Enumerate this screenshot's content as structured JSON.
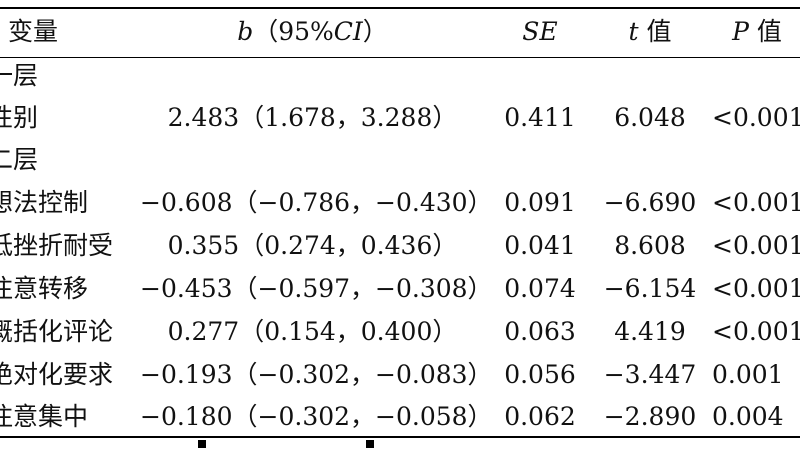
{
  "header": {
    "variable": "变量",
    "b_italic": "b",
    "b_rest": "（95%",
    "ci_italic": "CI",
    "b_close": "）",
    "se": "SE",
    "t_italic": "t",
    "t_rest": " 值",
    "p_italic": "P",
    "p_rest": " 值"
  },
  "rows": [
    {
      "variable": "一层",
      "b": "",
      "se": "",
      "t": "",
      "p": ""
    },
    {
      "variable": "性别",
      "b": "2.483（1.678，3.288）",
      "se": "0.411",
      "t": "6.048",
      "p": "<0.001"
    },
    {
      "variable": "二层",
      "b": "",
      "se": "",
      "t": "",
      "p": ""
    },
    {
      "variable": "想法控制",
      "b": "−0.608（−0.786，−0.430）",
      "se": "0.091",
      "t": "−6.690",
      "p": "<0.001"
    },
    {
      "variable": "低挫折耐受",
      "b": "0.355（0.274，0.436）",
      "se": "0.041",
      "t": "8.608",
      "p": "<0.001"
    },
    {
      "variable": "注意转移",
      "b": "−0.453（−0.597，−0.308）",
      "se": "0.074",
      "t": "−6.154",
      "p": "<0.001"
    },
    {
      "variable": "概括化评论",
      "b": "0.277（0.154，0.400）",
      "se": "0.063",
      "t": "4.419",
      "p": "<0.001"
    },
    {
      "variable": "绝对化要求",
      "b": "−0.193（−0.302，−0.083）",
      "se": "0.056",
      "t": "−3.447",
      "p": "0.001"
    },
    {
      "variable": "注意集中",
      "b": "−0.180（−0.302，−0.058）",
      "se": "0.062",
      "t": "−2.890",
      "p": "0.004"
    }
  ]
}
